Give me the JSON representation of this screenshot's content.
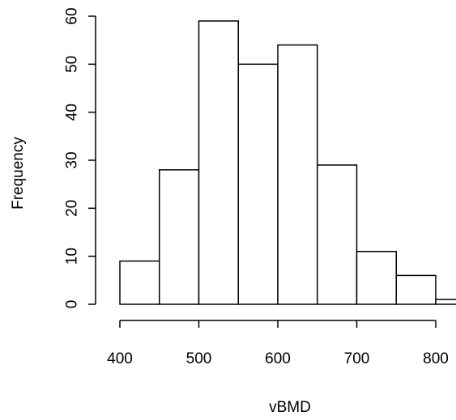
{
  "chart_data": {
    "type": "bar",
    "subtype": "histogram",
    "title": "",
    "xlabel": "vBMD",
    "ylabel": "Frequency",
    "bins": [
      {
        "start": 400,
        "end": 450,
        "count": 9
      },
      {
        "start": 450,
        "end": 500,
        "count": 28
      },
      {
        "start": 500,
        "end": 550,
        "count": 59
      },
      {
        "start": 550,
        "end": 600,
        "count": 50
      },
      {
        "start": 600,
        "end": 650,
        "count": 54
      },
      {
        "start": 650,
        "end": 700,
        "count": 29
      },
      {
        "start": 700,
        "end": 750,
        "count": 11
      },
      {
        "start": 750,
        "end": 800,
        "count": 6
      },
      {
        "start": 800,
        "end": 850,
        "count": 1
      }
    ],
    "xlim": [
      400,
      850
    ],
    "ylim": [
      0,
      60
    ],
    "x_ticks": [
      "400",
      "500",
      "600",
      "700",
      "800"
    ],
    "y_ticks": [
      "0",
      "10",
      "20",
      "30",
      "40",
      "50",
      "60"
    ],
    "grid": false,
    "legend": "none",
    "bar_fill": "#ffffff",
    "bar_stroke": "#000000"
  }
}
